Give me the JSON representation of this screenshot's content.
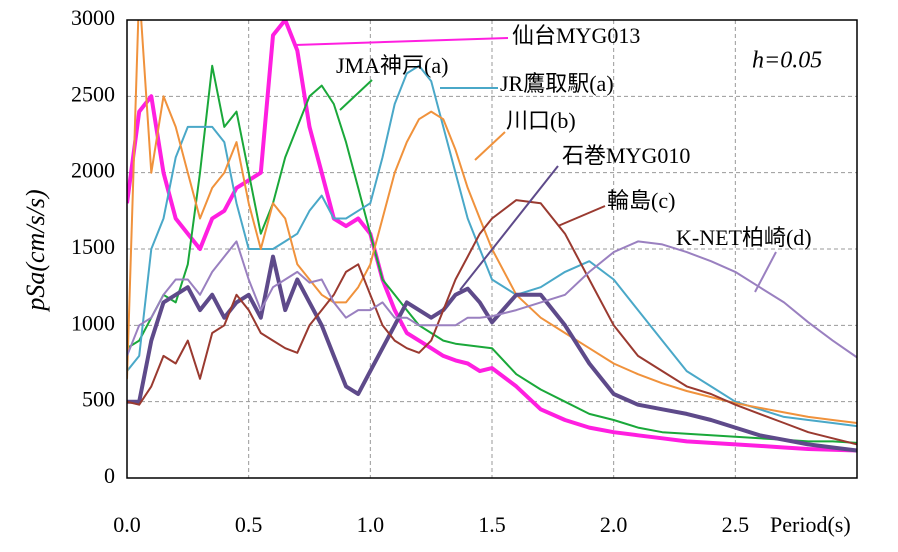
{
  "chart_data": {
    "type": "line",
    "y_label": "pSa(cm/s/s)",
    "x_label": "Period(s)",
    "annotation": "h=0.05",
    "xlim": [
      0,
      3
    ],
    "ylim": [
      0,
      3000
    ],
    "xticks": [
      {
        "value": 0,
        "label": "0.0"
      },
      0.5,
      {
        "value": 1,
        "label": "1.0"
      },
      1.5,
      {
        "value": 2,
        "label": "2.0"
      },
      2.5
    ],
    "yticks": [
      0,
      500,
      1000,
      1500,
      2000,
      2500,
      3000
    ],
    "grid": true,
    "x": [
      0,
      0.05,
      0.1,
      0.15,
      0.2,
      0.25,
      0.3,
      0.35,
      0.4,
      0.45,
      0.5,
      0.55,
      0.6,
      0.65,
      0.7,
      0.75,
      0.8,
      0.85,
      0.9,
      0.95,
      1.0,
      1.05,
      1.1,
      1.15,
      1.2,
      1.25,
      1.3,
      1.35,
      1.4,
      1.45,
      1.5,
      1.6,
      1.7,
      1.8,
      1.9,
      2.0,
      2.1,
      2.2,
      2.3,
      2.4,
      2.5,
      2.6,
      2.7,
      2.8,
      2.9,
      3.0
    ],
    "series": [
      {
        "name": "仙台MYG013",
        "color": "#ff1fe0",
        "width": 4,
        "values": [
          1800,
          2400,
          2500,
          2000,
          1700,
          1600,
          1500,
          1700,
          1750,
          1900,
          1950,
          2000,
          2900,
          3000,
          2800,
          2300,
          2000,
          1700,
          1650,
          1700,
          1600,
          1300,
          1100,
          950,
          900,
          850,
          800,
          770,
          750,
          700,
          720,
          600,
          450,
          380,
          330,
          300,
          280,
          260,
          240,
          230,
          220,
          210,
          200,
          190,
          185,
          180
        ]
      },
      {
        "name": "JMA神戸(a)",
        "color": "#1aa83a",
        "width": 2,
        "values": [
          850,
          900,
          1050,
          1200,
          1150,
          1400,
          2000,
          2700,
          2300,
          2400,
          2000,
          1600,
          1800,
          2100,
          2300,
          2500,
          2570,
          2450,
          2200,
          1900,
          1600,
          1300,
          1200,
          1100,
          1000,
          950,
          900,
          880,
          870,
          860,
          850,
          680,
          580,
          500,
          420,
          380,
          330,
          300,
          290,
          280,
          270,
          260,
          250,
          240,
          240,
          230
        ]
      },
      {
        "name": "JR鷹取駅(a)",
        "color": "#4aa8c8",
        "width": 2,
        "values": [
          700,
          800,
          1500,
          1700,
          2100,
          2300,
          2300,
          2300,
          2200,
          1800,
          1500,
          1500,
          1500,
          1550,
          1600,
          1750,
          1850,
          1700,
          1700,
          1750,
          1800,
          2100,
          2450,
          2650,
          2700,
          2600,
          2300,
          2000,
          1700,
          1500,
          1300,
          1200,
          1250,
          1350,
          1420,
          1300,
          1100,
          900,
          700,
          600,
          500,
          450,
          400,
          380,
          360,
          340
        ]
      },
      {
        "name": "川口(b)",
        "color": "#f0923c",
        "width": 2,
        "values": [
          650,
          3200,
          2000,
          2500,
          2300,
          2000,
          1700,
          1900,
          2000,
          2200,
          1800,
          1500,
          1800,
          1700,
          1400,
          1300,
          1200,
          1150,
          1150,
          1250,
          1400,
          1700,
          2000,
          2200,
          2350,
          2400,
          2350,
          2150,
          1900,
          1700,
          1500,
          1200,
          1050,
          950,
          850,
          750,
          680,
          620,
          570,
          530,
          490,
          460,
          430,
          400,
          380,
          360
        ]
      },
      {
        "name": "石巻MYG010",
        "color": "#5e4a8a",
        "width": 4,
        "values": [
          500,
          500,
          900,
          1150,
          1200,
          1250,
          1100,
          1200,
          1050,
          1150,
          1200,
          1050,
          1450,
          1100,
          1300,
          1150,
          1000,
          800,
          600,
          550,
          700,
          850,
          1000,
          1150,
          1100,
          1050,
          1100,
          1200,
          1240,
          1150,
          1020,
          1200,
          1200,
          1000,
          750,
          550,
          480,
          450,
          420,
          380,
          330,
          280,
          250,
          220,
          200,
          180
        ]
      },
      {
        "name": "輪島(c)",
        "color": "#9a3a30",
        "width": 2,
        "values": [
          500,
          480,
          600,
          800,
          750,
          900,
          650,
          950,
          1000,
          1200,
          1100,
          950,
          900,
          850,
          820,
          1000,
          1100,
          1200,
          1350,
          1400,
          1200,
          1000,
          900,
          850,
          820,
          900,
          1100,
          1300,
          1450,
          1600,
          1700,
          1820,
          1800,
          1600,
          1300,
          1000,
          800,
          700,
          600,
          550,
          480,
          420,
          360,
          300,
          260,
          220
        ]
      },
      {
        "name": "K-NET柏崎(d)",
        "color": "#9a80c0",
        "width": 2,
        "values": [
          800,
          1000,
          1050,
          1200,
          1300,
          1300,
          1200,
          1350,
          1450,
          1550,
          1300,
          1100,
          1250,
          1300,
          1350,
          1280,
          1300,
          1150,
          1050,
          1100,
          1100,
          1150,
          1050,
          1050,
          1000,
          1000,
          1000,
          1000,
          1050,
          1050,
          1060,
          1100,
          1150,
          1200,
          1350,
          1480,
          1550,
          1530,
          1480,
          1420,
          1350,
          1250,
          1150,
          1020,
          900,
          790
        ]
      }
    ]
  }
}
